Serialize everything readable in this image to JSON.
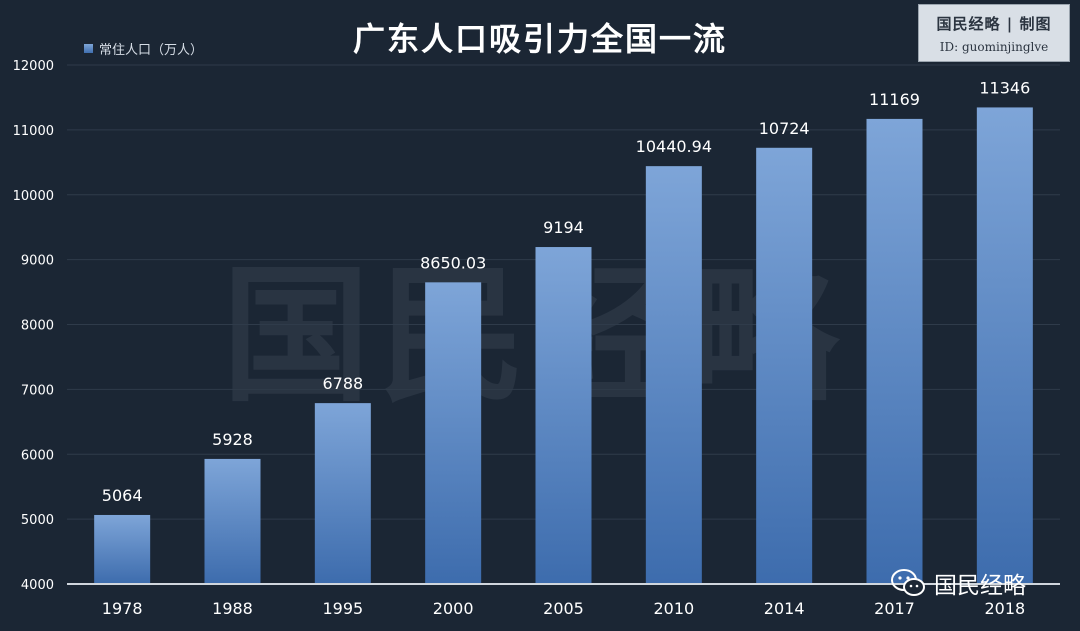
{
  "watermark": "国民经略",
  "badge": {
    "line1": "国民经略 | 制图",
    "line2": "ID: guominjinglve"
  },
  "footer": {
    "icon": "wechat-icon",
    "brand": "国民经略"
  },
  "colors": {
    "background": "#1b2634",
    "bar_top": "#7ea5d8",
    "bar_bottom": "#3d6cad",
    "grid": "#2f3b4a",
    "text": "#ffffff"
  },
  "chart_data": {
    "type": "bar",
    "title": "广东人口吸引力全国一流",
    "series": [
      {
        "name": "常住人口（万人）",
        "values": [
          5064,
          5928,
          6788,
          8650.03,
          9194,
          10440.94,
          10724,
          11169,
          11346
        ]
      }
    ],
    "categories": [
      "1978",
      "1988",
      "1995",
      "2000",
      "2005",
      "2010",
      "2014",
      "2017",
      "2018"
    ],
    "data_labels": [
      "5064",
      "5928",
      "6788",
      "8650.03",
      "9194",
      "10440.94",
      "10724",
      "11169",
      "11346"
    ],
    "ylim": [
      4000,
      12000
    ],
    "yticks": [
      4000,
      5000,
      6000,
      7000,
      8000,
      9000,
      10000,
      11000,
      12000
    ],
    "ytick_labels": [
      "4000",
      "5000",
      "6000",
      "7000",
      "8000",
      "9000",
      "10000",
      "11000",
      "12000"
    ],
    "grid": true,
    "legend": "top-left"
  }
}
